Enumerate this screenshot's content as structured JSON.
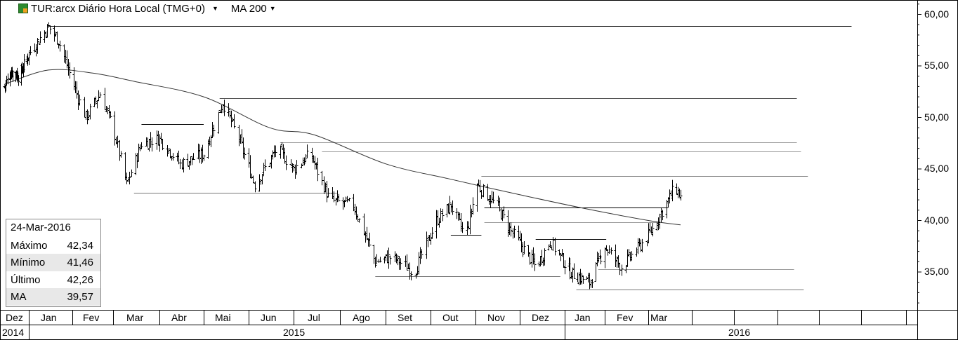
{
  "header": {
    "symbol_title": "TUR:arcx Diário Hora Local (TMG+0)",
    "indicator_label": "MA 200",
    "logo_icon": "exchange-flag-icon"
  },
  "infobox": {
    "date": "24-Mar-2016",
    "rows": [
      {
        "label": "Máximo",
        "value": "42,34"
      },
      {
        "label": "Mínimo",
        "value": "41,46"
      },
      {
        "label": "Último",
        "value": "42,26"
      },
      {
        "label": "MA",
        "value": "39,57"
      }
    ]
  },
  "chart_data": {
    "type": "ohlc",
    "title": "TUR:arcx Diário Hora Local (TMG+0)",
    "indicator": "MA 200",
    "ylim": [
      30.8,
      61.5
    ],
    "y_ticks": [
      "60,00",
      "55,00",
      "50,00",
      "45,00",
      "40,00",
      "35,00"
    ],
    "y_tick_values": [
      60,
      55,
      50,
      45,
      40,
      35
    ],
    "x_month_labels": [
      "Dez",
      "Jan",
      "Fev",
      "Mar",
      "Abr",
      "Mai",
      "Jun",
      "Jul",
      "Ago",
      "Set",
      "Out",
      "Nov",
      "Dez",
      "Jan",
      "Fev",
      "Mar"
    ],
    "x_year_labels": [
      "2014",
      "2015",
      "2016"
    ],
    "price_path": [
      [
        "2014-12-01",
        53.0
      ],
      [
        "2014-12-10",
        54.5
      ],
      [
        "2014-12-20",
        54.0
      ],
      [
        "2015-01-05",
        57.0
      ],
      [
        "2015-01-15",
        58.8
      ],
      [
        "2015-01-22",
        57.5
      ],
      [
        "2015-02-01",
        53.5
      ],
      [
        "2015-02-10",
        50.0
      ],
      [
        "2015-02-20",
        52.3
      ],
      [
        "2015-03-01",
        49.0
      ],
      [
        "2015-03-10",
        43.5
      ],
      [
        "2015-03-20",
        47.5
      ],
      [
        "2015-04-01",
        48.0
      ],
      [
        "2015-04-15",
        45.5
      ],
      [
        "2015-05-01",
        46.5
      ],
      [
        "2015-05-14",
        51.5
      ],
      [
        "2015-05-25",
        48.0
      ],
      [
        "2015-06-05",
        43.5
      ],
      [
        "2015-06-20",
        47.0
      ],
      [
        "2015-07-01",
        45.0
      ],
      [
        "2015-07-12",
        46.5
      ],
      [
        "2015-07-25",
        42.0
      ],
      [
        "2015-08-10",
        41.5
      ],
      [
        "2015-08-25",
        36.0
      ],
      [
        "2015-09-05",
        36.5
      ],
      [
        "2015-09-20",
        35.0
      ],
      [
        "2015-10-05",
        40.0
      ],
      [
        "2015-10-15",
        41.5
      ],
      [
        "2015-10-25",
        38.5
      ],
      [
        "2015-11-02",
        43.5
      ],
      [
        "2015-11-15",
        41.5
      ],
      [
        "2015-11-25",
        39.0
      ],
      [
        "2015-12-05",
        37.0
      ],
      [
        "2015-12-12",
        35.5
      ],
      [
        "2015-12-22",
        38.0
      ],
      [
        "2016-01-05",
        35.0
      ],
      [
        "2016-01-20",
        34.0
      ],
      [
        "2016-02-01",
        37.5
      ],
      [
        "2016-02-12",
        35.5
      ],
      [
        "2016-03-01",
        38.5
      ],
      [
        "2016-03-15",
        42.0
      ],
      [
        "2016-03-20",
        43.3
      ],
      [
        "2016-03-24",
        42.26
      ]
    ],
    "ma_200": [
      [
        "2014-12-01",
        53.2
      ],
      [
        "2015-01-15",
        54.6
      ],
      [
        "2015-02-15",
        54.3
      ],
      [
        "2015-03-15",
        53.5
      ],
      [
        "2015-05-01",
        52.0
      ],
      [
        "2015-06-15",
        49.0
      ],
      [
        "2015-07-15",
        48.3
      ],
      [
        "2015-09-01",
        45.5
      ],
      [
        "2015-10-15",
        44.0
      ],
      [
        "2015-12-01",
        42.5
      ],
      [
        "2016-01-15",
        41.2
      ],
      [
        "2016-03-01",
        40.0
      ],
      [
        "2016-03-24",
        39.57
      ]
    ],
    "horizontal_levels": [
      {
        "value": 58.9,
        "from": "2015-01-15",
        "to": "2016-07-25",
        "color": "#000000"
      },
      {
        "value": 51.85,
        "from": "2015-05-12",
        "to": "2016-06-15",
        "color": "#555555"
      },
      {
        "value": 49.35,
        "from": "2015-03-20",
        "to": "2015-05-01",
        "color": "#000000"
      },
      {
        "value": 47.6,
        "from": "2015-06-22",
        "to": "2016-06-15",
        "color": "#999999"
      },
      {
        "value": 46.7,
        "from": "2015-07-20",
        "to": "2016-06-18",
        "color": "#999999"
      },
      {
        "value": 44.35,
        "from": "2015-11-05",
        "to": "2016-06-23",
        "color": "#777777"
      },
      {
        "value": 42.7,
        "from": "2015-03-15",
        "to": "2015-07-30",
        "color": "#777777"
      },
      {
        "value": 41.25,
        "from": "2015-11-07",
        "to": "2016-03-15",
        "color": "#000000"
      },
      {
        "value": 39.85,
        "from": "2015-11-07",
        "to": "2016-03-08",
        "color": "#999999"
      },
      {
        "value": 38.6,
        "from": "2015-10-15",
        "to": "2015-11-05",
        "color": "#000000"
      },
      {
        "value": 38.2,
        "from": "2015-12-12",
        "to": "2016-02-02",
        "color": "#000000"
      },
      {
        "value": 35.3,
        "from": "2016-01-27",
        "to": "2016-06-13",
        "color": "#999999"
      },
      {
        "value": 34.6,
        "from": "2015-08-25",
        "to": "2015-12-29",
        "color": "#777777"
      },
      {
        "value": 33.3,
        "from": "2016-01-10",
        "to": "2016-06-20",
        "color": "#777777"
      }
    ],
    "grid": false
  }
}
